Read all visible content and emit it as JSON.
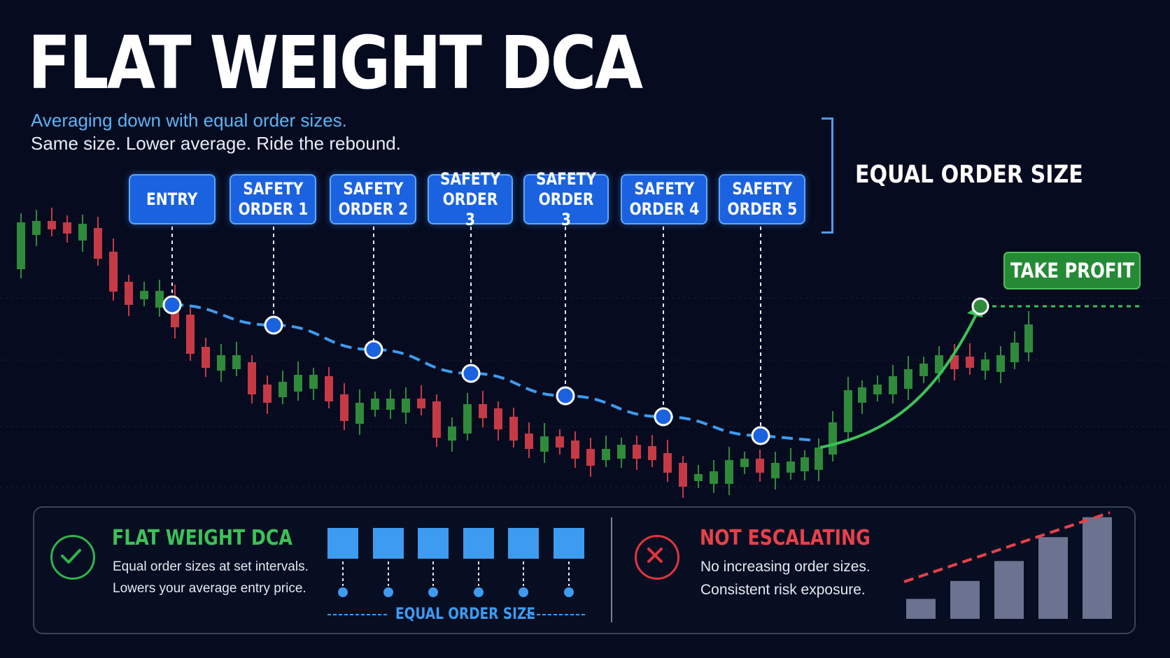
{
  "header": {
    "title": "FLAT WEIGHT DCA",
    "subtitle": "Averaging down with equal order sizes.",
    "tagline": "Same size. Lower average. Ride the rebound."
  },
  "equal_order_label": "EQUAL ORDER SIZE",
  "orders": [
    {
      "label": "ENTRY"
    },
    {
      "label": "SAFETY\nORDER 1"
    },
    {
      "label": "SAFETY\nORDER 2"
    },
    {
      "label": "SAFETY\nORDER 3"
    },
    {
      "label": "SAFETY\nORDER 3"
    },
    {
      "label": "SAFETY\nORDER 4"
    },
    {
      "label": "SAFETY\nORDER 5"
    }
  ],
  "take_profit_label": "TAKE PROFIT",
  "flat_panel": {
    "heading": "FLAT WEIGHT DCA",
    "line1": "Equal order sizes at set intervals.",
    "line2": "Lowers your average entry price.",
    "caption": "EQUAL ORDER SIZE",
    "block_sizes": [
      1,
      1,
      1,
      1,
      1,
      1
    ]
  },
  "escalating_panel": {
    "heading": "NOT ESCALATING",
    "line1": "No increasing order sizes.",
    "line2": "Consistent risk exposure.",
    "bar_sizes": [
      1,
      1.9,
      2.9,
      4.1,
      5.1
    ]
  },
  "colors": {
    "background": "#060b1f",
    "accent_blue": "#1b62e0",
    "avg_line": "#3d9bf0",
    "up_candle": "#2f8a3a",
    "down_candle": "#c63a45",
    "profit_green": "#3cc257",
    "warning_red": "#e8414a",
    "bar_gray": "#6b7390"
  }
}
